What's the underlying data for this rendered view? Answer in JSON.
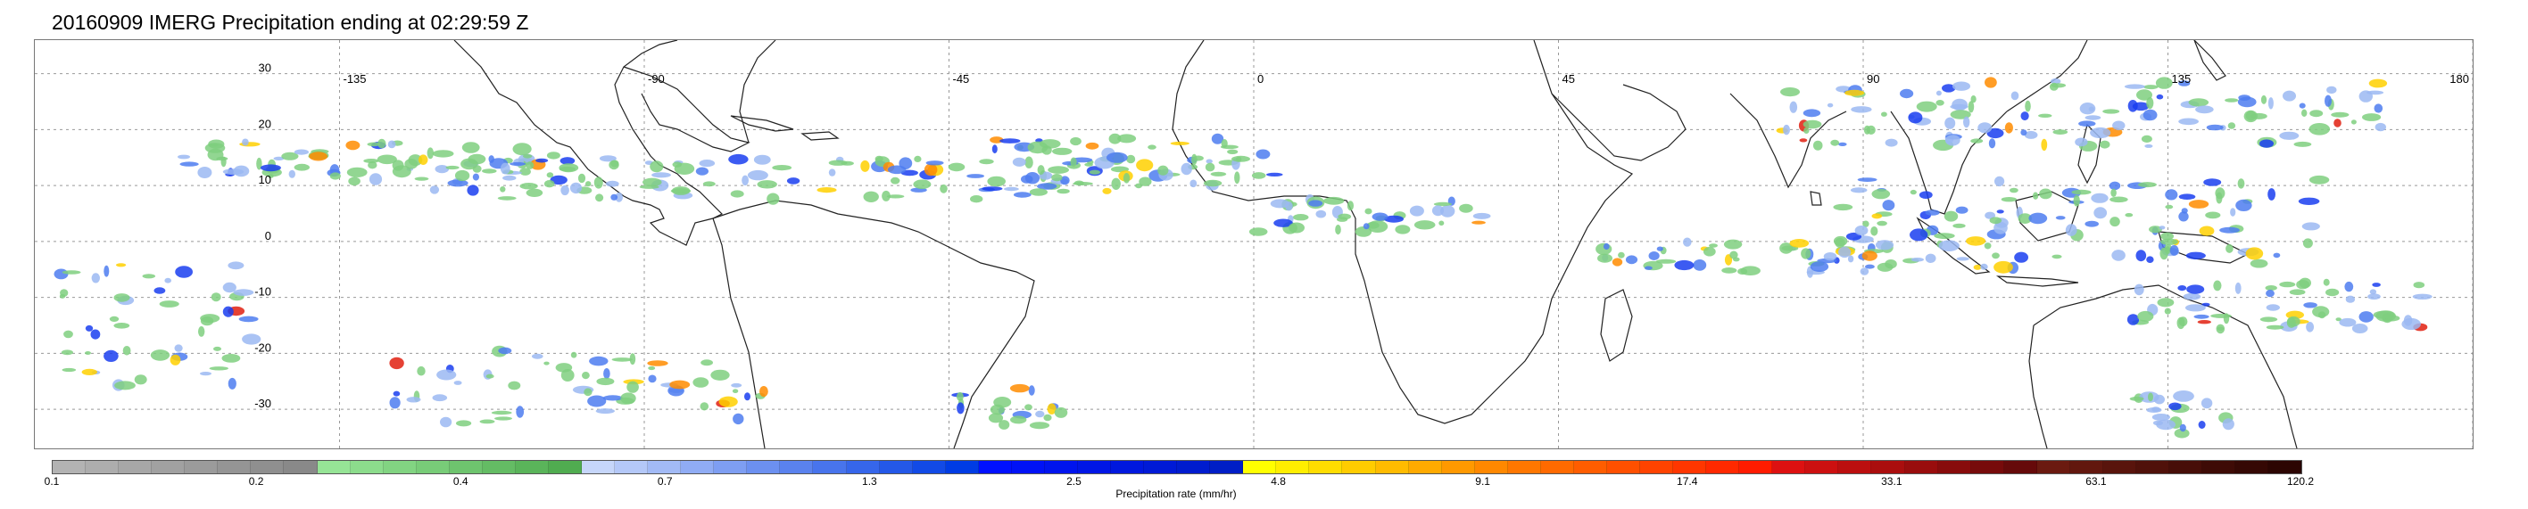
{
  "title": "20160909 IMERG Precipitation ending at 02:29:59 Z",
  "map": {
    "lat_labels": [
      "30",
      "20",
      "10",
      "0",
      "-10",
      "-20",
      "-30"
    ],
    "lat_values": [
      30,
      20,
      10,
      0,
      -10,
      -20,
      -30
    ],
    "lon_labels": [
      "-135",
      "-90",
      "-45",
      "0",
      "45",
      "90",
      "135",
      "180"
    ],
    "lon_values": [
      -135,
      -90,
      -45,
      0,
      45,
      90,
      135,
      180
    ],
    "extent": {
      "lon_min": -180,
      "lon_max": 180,
      "lat_min": -37,
      "lat_max": 36
    },
    "gridlines": "dotted",
    "projection": "equirectangular"
  },
  "colorbar": {
    "label": "Precipitation rate (mm/hr)",
    "tick_labels": [
      "0.1",
      "0.2",
      "0.4",
      "0.7",
      "1.3",
      "2.5",
      "4.8",
      "9.1",
      "17.4",
      "33.1",
      "63.1",
      "120.2"
    ],
    "colors": [
      "#b3b3b3",
      "#adadad",
      "#a7a7a7",
      "#a1a1a1",
      "#9b9b9b",
      "#959595",
      "#8f8f8f",
      "#898989",
      "#96e496",
      "#8cdc8c",
      "#82d482",
      "#78cc78",
      "#6ec46e",
      "#64bc64",
      "#5ab45a",
      "#50ac50",
      "#c6d6fa",
      "#b4c8f8",
      "#a2baf6",
      "#90acf4",
      "#7e9ef2",
      "#6c90f0",
      "#5a82ee",
      "#4874ec",
      "#3666ea",
      "#2458e8",
      "#124ae6",
      "#003ce4",
      "#0010ff",
      "#0012f6",
      "#0014ee",
      "#0016e6",
      "#0018de",
      "#001ad6",
      "#001cce",
      "#001ec6",
      "#ffff00",
      "#ffee00",
      "#ffdd00",
      "#ffcc00",
      "#ffbb00",
      "#ffaa00",
      "#ff9900",
      "#ff8800",
      "#ff7700",
      "#ff6a00",
      "#ff5d00",
      "#ff5000",
      "#ff4300",
      "#ff3600",
      "#ff2900",
      "#ff1c00",
      "#dd1111",
      "#cc1010",
      "#bb0f0f",
      "#aa0e0e",
      "#990d0d",
      "#880c0c",
      "#770b0b",
      "#660a0a",
      "#6b1a10",
      "#62170e",
      "#59140c",
      "#50110a",
      "#470e08",
      "#3e0b06",
      "#350804",
      "#2c0502"
    ]
  }
}
